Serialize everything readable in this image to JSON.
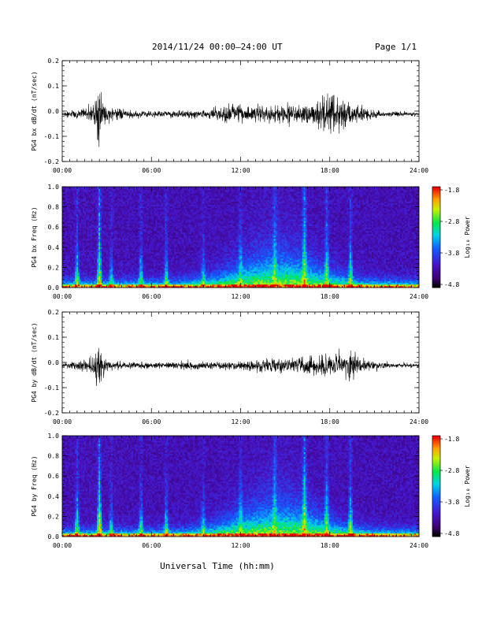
{
  "header": {
    "title": "2014/11/24  00:00–24:00 UT",
    "page": "Page 1/1"
  },
  "xlabel": "Universal Time (hh:mm)",
  "chart_data": [
    {
      "type": "line",
      "ylabel": "PG4 bx dB/dt (nT/sec)",
      "ylim": [
        -0.2,
        0.2
      ],
      "yticks": [
        "0.2",
        "0.1",
        "0.0",
        "-0.1",
        "-0.2"
      ],
      "xlim": [
        0,
        24
      ],
      "xticks": [
        "00:00",
        "06:00",
        "12:00",
        "18:00",
        "24:00"
      ],
      "series": [
        {
          "values": {
            "t_hours": [
              0,
              1,
              2,
              2.5,
              2.6,
              3,
              4,
              6,
              8,
              10,
              11.5,
              12,
              13,
              14,
              15,
              16,
              17,
              17.9,
              18.5,
              19,
              20,
              21,
              22,
              24
            ],
            "amp": [
              0.01,
              0.02,
              0.035,
              0.12,
              0.08,
              0.03,
              0.02,
              0.015,
              0.015,
              0.02,
              0.04,
              0.03,
              0.03,
              0.035,
              0.04,
              0.04,
              0.05,
              0.1,
              0.08,
              0.06,
              0.03,
              0.02,
              0.01,
              0.008
            ]
          }
        }
      ]
    },
    {
      "type": "heatmap",
      "ylabel": "PG4 bx Freq (Hz)",
      "ylim": [
        0.0,
        1.0
      ],
      "yticks": [
        "1.0",
        "0.8",
        "0.6",
        "0.4",
        "0.2",
        "0.0"
      ],
      "xlim": [
        0,
        24
      ],
      "xticks": [
        "00:00",
        "06:00",
        "12:00",
        "18:00",
        "24:00"
      ],
      "colorbar": {
        "label": "Log₁₀ Power",
        "ticks": [
          "-1.8",
          "-2.8",
          "-3.8",
          "-4.8"
        ],
        "range": [
          -4.8,
          -1.8
        ]
      }
    },
    {
      "type": "line",
      "ylabel": "PG4 by dB/dt (nT/sec)",
      "ylim": [
        -0.2,
        0.2
      ],
      "yticks": [
        "0.2",
        "0.1",
        "0.0",
        "-0.1",
        "-0.2"
      ],
      "xlim": [
        0,
        24
      ],
      "xticks": [
        "00:00",
        "06:00",
        "12:00",
        "18:00",
        "24:00"
      ],
      "series": [
        {
          "values": {
            "t_hours": [
              0,
              1,
              2,
              2.5,
              2.6,
              3,
              4,
              6,
              8,
              10,
              12,
              13,
              14,
              15,
              16,
              17,
              18,
              19,
              19.5,
              20,
              21,
              22,
              24
            ],
            "amp": [
              0.01,
              0.02,
              0.03,
              0.09,
              0.06,
              0.02,
              0.015,
              0.012,
              0.015,
              0.015,
              0.02,
              0.025,
              0.03,
              0.03,
              0.035,
              0.04,
              0.05,
              0.05,
              0.07,
              0.03,
              0.02,
              0.01,
              0.008
            ]
          }
        }
      ]
    },
    {
      "type": "heatmap",
      "ylabel": "PG4 by Freq (Hz)",
      "ylim": [
        0.0,
        1.0
      ],
      "yticks": [
        "1.0",
        "0.8",
        "0.6",
        "0.4",
        "0.2",
        "0.0"
      ],
      "xlim": [
        0,
        24
      ],
      "xticks": [
        "00:00",
        "06:00",
        "12:00",
        "18:00",
        "24:00"
      ],
      "colorbar": {
        "label": "Log₁₀ Power",
        "ticks": [
          "-1.8",
          "-2.8",
          "-3.8",
          "-4.8"
        ],
        "range": [
          -4.8,
          -1.8
        ]
      }
    }
  ]
}
